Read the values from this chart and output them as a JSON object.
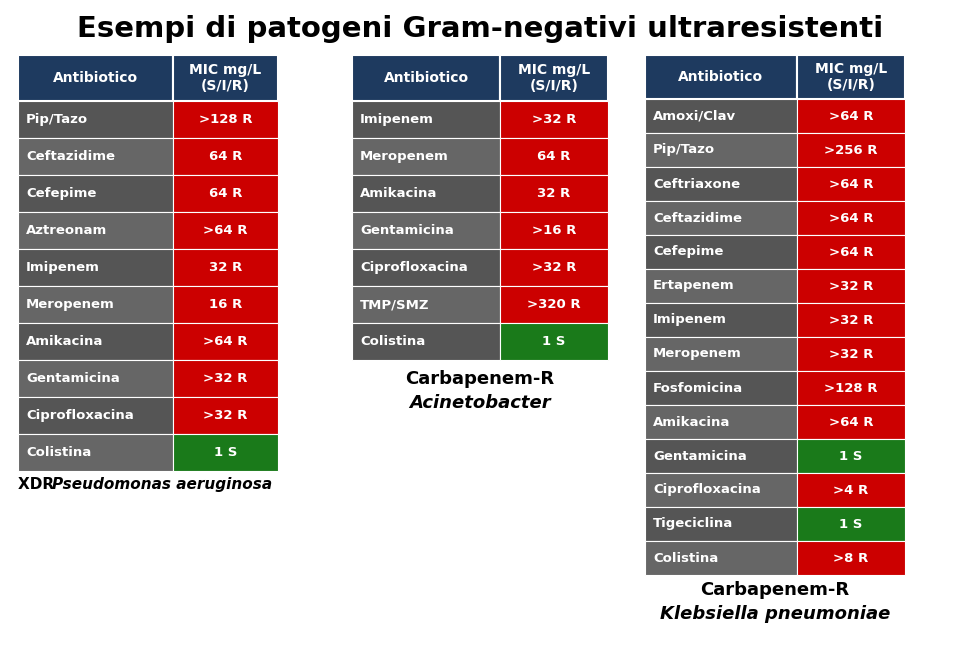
{
  "title": "Esempi di patogeni Gram-negativi ultraresistenti",
  "title_fontsize": 21,
  "background_color": "#ffffff",
  "header_bg": "#1e3a5f",
  "red_bg": "#cc0000",
  "green_bg": "#1a7a1a",
  "row_bg_even": "#555555",
  "row_bg_odd": "#666666",
  "white": "#ffffff",
  "tables": [
    {
      "headers": [
        "Antibiotico",
        "MIC mg/L\n(S/I/R)"
      ],
      "rows": [
        [
          "Pip/Tazo",
          ">128 R",
          "red"
        ],
        [
          "Ceftazidime",
          "64 R",
          "red"
        ],
        [
          "Cefepime",
          "64 R",
          "red"
        ],
        [
          "Aztreonam",
          ">64 R",
          "red"
        ],
        [
          "Imipenem",
          "32 R",
          "red"
        ],
        [
          "Meropenem",
          "16 R",
          "red"
        ],
        [
          "Amikacina",
          ">64 R",
          "red"
        ],
        [
          "Gentamicina",
          ">32 R",
          "red"
        ],
        [
          "Ciprofloxacina",
          ">32 R",
          "red"
        ],
        [
          "Colistina",
          "1 S",
          "green"
        ]
      ],
      "sub_prefix": "XDR ",
      "sub_italic": "Pseudomonas aeruginosa",
      "sub_centered": false
    },
    {
      "headers": [
        "Antibiotico",
        "MIC mg/L\n(S/I/R)"
      ],
      "rows": [
        [
          "Imipenem",
          ">32 R",
          "red"
        ],
        [
          "Meropenem",
          "64 R",
          "red"
        ],
        [
          "Amikacina",
          "32 R",
          "red"
        ],
        [
          "Gentamicina",
          ">16 R",
          "red"
        ],
        [
          "Ciprofloxacina",
          ">32 R",
          "red"
        ],
        [
          "TMP/SMZ",
          ">320 R",
          "red"
        ],
        [
          "Colistina",
          "1 S",
          "green"
        ]
      ],
      "sub_line1": "Carbapenem-R",
      "sub_line2": "Acinetobacter",
      "sub_centered": true
    },
    {
      "headers": [
        "Antibiotico",
        "MIC mg/L\n(S/I/R)"
      ],
      "rows": [
        [
          "Amoxi/Clav",
          ">64 R",
          "red"
        ],
        [
          "Pip/Tazo",
          ">256 R",
          "red"
        ],
        [
          "Ceftriaxone",
          ">64 R",
          "red"
        ],
        [
          "Ceftazidime",
          ">64 R",
          "red"
        ],
        [
          "Cefepime",
          ">64 R",
          "red"
        ],
        [
          "Ertapenem",
          ">32 R",
          "red"
        ],
        [
          "Imipenem",
          ">32 R",
          "red"
        ],
        [
          "Meropenem",
          ">32 R",
          "red"
        ],
        [
          "Fosfomicina",
          ">128 R",
          "red"
        ],
        [
          "Amikacina",
          ">64 R",
          "red"
        ],
        [
          "Gentamicina",
          "1 S",
          "green"
        ],
        [
          "Ciprofloxacina",
          ">4 R",
          "red"
        ],
        [
          "Tigeciclina",
          "1 S",
          "green"
        ],
        [
          "Colistina",
          ">8 R",
          "red"
        ]
      ],
      "sub_line1": "Carbapenem-R",
      "sub_line2": "Klebsiella pneumoniae",
      "sub_centered": true
    }
  ]
}
